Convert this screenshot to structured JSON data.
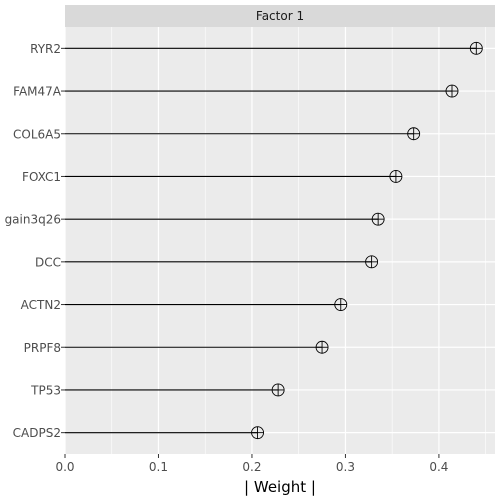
{
  "chart_data": {
    "type": "lollipop",
    "facet": "Factor 1",
    "xlabel": "| Weight |",
    "ylabel": "",
    "xlim": [
      0,
      0.46
    ],
    "x_ticks": [
      0,
      0.1,
      0.2,
      0.3,
      0.4
    ],
    "x_tick_labels": [
      "0.0",
      "0.1",
      "0.2",
      "0.3",
      "0.4"
    ],
    "grid": true,
    "categories": [
      "RYR2",
      "FAM47A",
      "COL6A5",
      "FOXC1",
      "gain3q26",
      "DCC",
      "ACTN2",
      "PRPF8",
      "TP53",
      "CADPS2"
    ],
    "values": [
      0.44,
      0.414,
      0.373,
      0.354,
      0.335,
      0.328,
      0.295,
      0.275,
      0.228,
      0.206
    ]
  },
  "colors": {
    "panel_bg": "#ebebeb",
    "strip_bg": "#d9d9d9",
    "grid": "#ffffff",
    "segment": "#000000",
    "point_stroke": "#000000"
  }
}
